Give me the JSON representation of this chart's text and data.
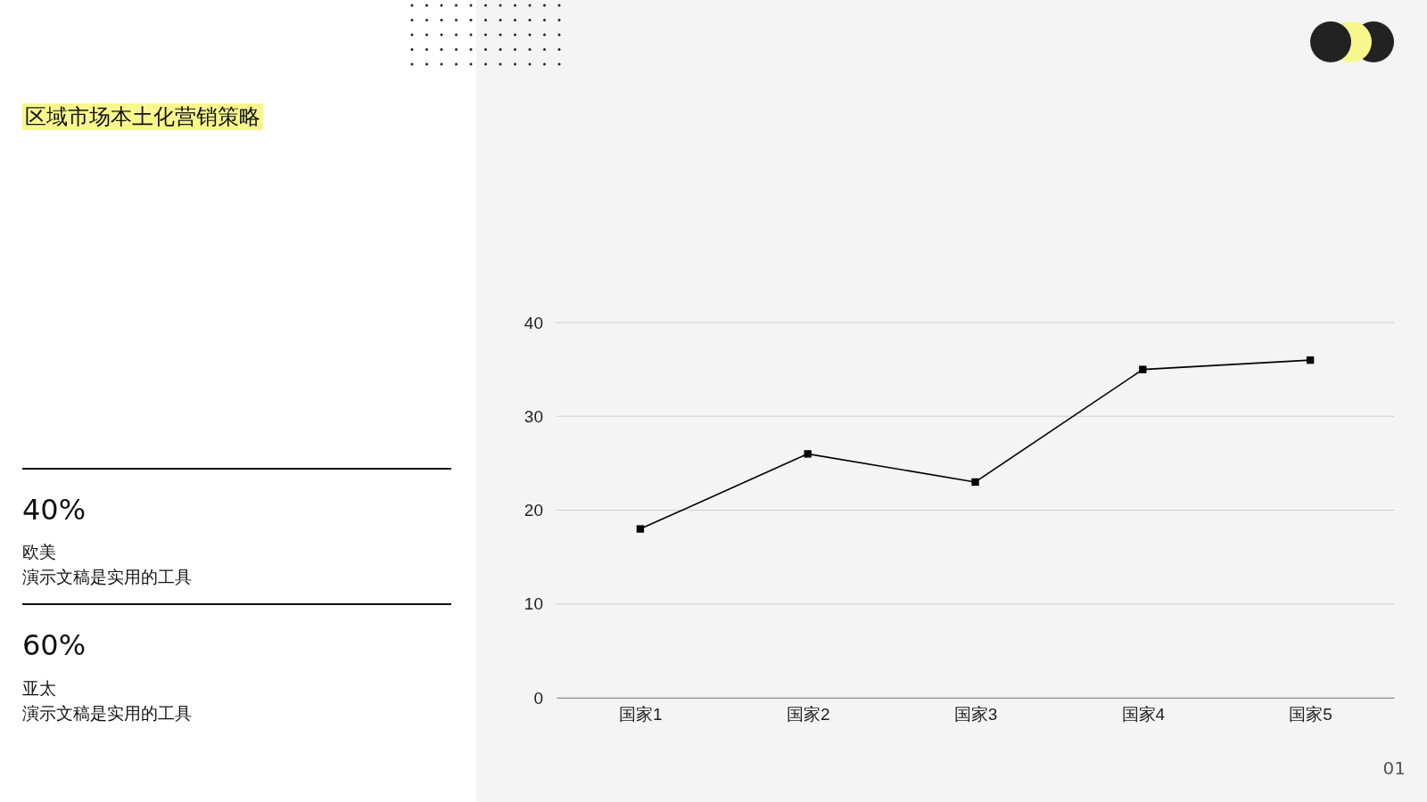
{
  "chart_data": {
    "type": "line",
    "title": "区域市场本土化营销策略",
    "categories": [
      "国家1",
      "国家2",
      "国家3",
      "国家4",
      "国家5"
    ],
    "series": [
      {
        "color": "#000000",
        "values": [
          18,
          26,
          23,
          35,
          36
        ]
      }
    ],
    "ylim": [
      0,
      40
    ],
    "yticks": [
      0,
      10,
      20,
      30,
      40
    ],
    "grid": "y",
    "marker": "square",
    "line_style": "solid",
    "annotations": [
      "40%",
      "欧美",
      "演示文稿是实用的工具",
      "60%",
      "亚太",
      "演示文稿是实用的工具",
      "01"
    ]
  }
}
